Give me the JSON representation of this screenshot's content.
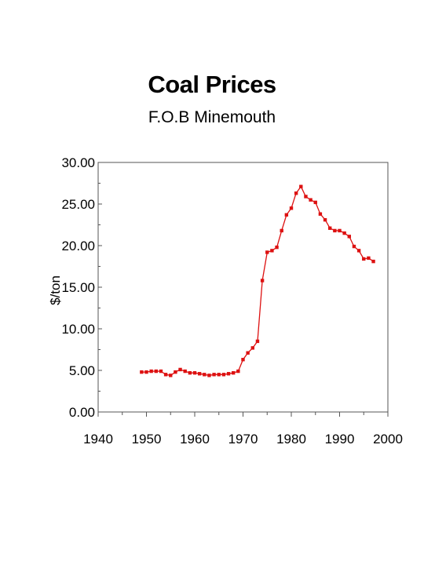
{
  "chart_data": {
    "type": "line",
    "title": "Coal Prices",
    "subtitle": "F.O.B  Minemouth",
    "ylabel": "$/ton",
    "xlabel": "",
    "xlim": [
      1940,
      2000
    ],
    "ylim": [
      0,
      30
    ],
    "x_ticks": [
      "1940",
      "1950",
      "1960",
      "1970",
      "1980",
      "1990",
      "2000"
    ],
    "y_ticks": [
      "0.00",
      "5.00",
      "10.00",
      "15.00",
      "20.00",
      "25.00",
      "30.00"
    ],
    "grid": false,
    "legend": "none",
    "series_color": "#dd1111",
    "series": [
      {
        "x": [
          1949,
          1950,
          1951,
          1952,
          1953,
          1954,
          1955,
          1956,
          1957,
          1958,
          1959,
          1960,
          1961,
          1962,
          1963,
          1964,
          1965,
          1966,
          1967,
          1968,
          1969,
          1970,
          1971,
          1972,
          1973,
          1974,
          1975,
          1976,
          1977,
          1978,
          1979,
          1980,
          1981,
          1982,
          1983,
          1984,
          1985,
          1986,
          1987,
          1988,
          1989,
          1990,
          1991,
          1992,
          1993,
          1994,
          1995,
          1996,
          1997
        ],
        "y": [
          4.8,
          4.8,
          4.9,
          4.9,
          4.9,
          4.5,
          4.4,
          4.8,
          5.1,
          4.9,
          4.7,
          4.7,
          4.6,
          4.5,
          4.4,
          4.5,
          4.5,
          4.5,
          4.6,
          4.7,
          4.9,
          6.3,
          7.1,
          7.7,
          8.5,
          15.8,
          19.2,
          19.4,
          19.8,
          21.8,
          23.7,
          24.5,
          26.3,
          27.1,
          25.9,
          25.5,
          25.2,
          23.8,
          23.1,
          22.1,
          21.8,
          21.8,
          21.5,
          21.1,
          19.9,
          19.4,
          18.4,
          18.5,
          18.1
        ]
      }
    ]
  }
}
